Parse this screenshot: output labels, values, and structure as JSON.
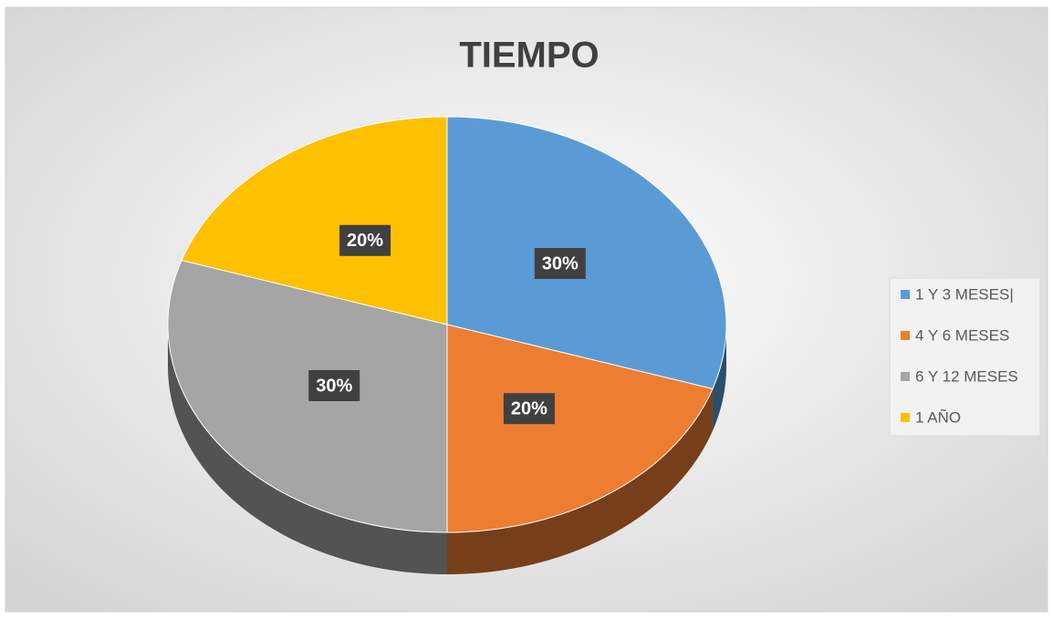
{
  "chart_data": {
    "type": "pie",
    "title": "TIEMPO",
    "categories": [
      "1 Y 3 MESES|",
      "4 Y 6 MESES",
      "6 Y 12 MESES",
      "1 AÑO"
    ],
    "values": [
      30,
      20,
      30,
      20
    ],
    "value_labels": [
      "30%",
      "20%",
      "30%",
      "20%"
    ],
    "colors": [
      "#5b9bd5",
      "#ed7d31",
      "#a5a5a5",
      "#ffc000"
    ],
    "legend": "right"
  }
}
